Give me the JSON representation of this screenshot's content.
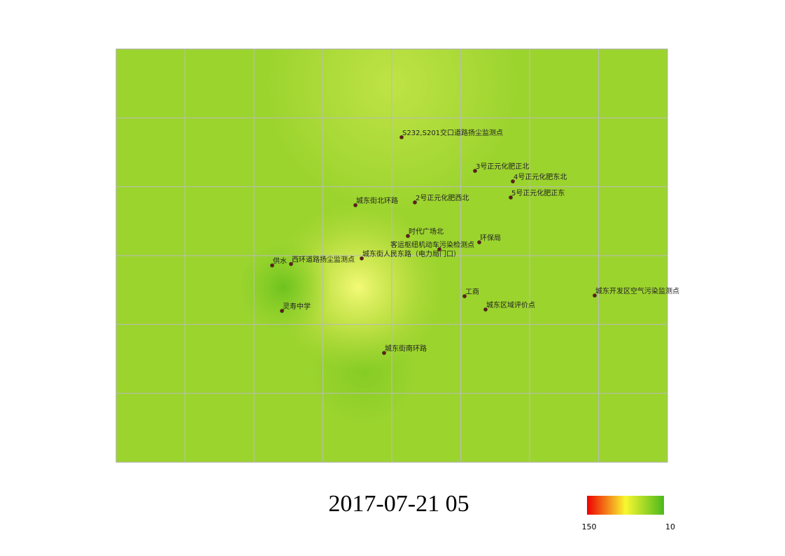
{
  "map": {
    "stations": [
      {
        "label": "S232,S201交口道路扬尘监测点"
      },
      {
        "label": "3号正元化肥正北"
      },
      {
        "label": "4号正元化肥东北"
      },
      {
        "label": "5号正元化肥正东"
      },
      {
        "label": "城东街北环路"
      },
      {
        "label": "2号正元化肥西北"
      },
      {
        "label": "时代广场北"
      },
      {
        "label": "环保局"
      },
      {
        "label": "客运枢纽机动车污染检测点"
      },
      {
        "label": "城东街人民东路（电力局门口）"
      },
      {
        "label": "供水"
      },
      {
        "label": "西环道路扬尘监测点"
      },
      {
        "label": "工商"
      },
      {
        "label": "城东区域评价点"
      },
      {
        "label": "城东开发区空气污染监测点"
      },
      {
        "label": "灵寿中学"
      },
      {
        "label": "城东街南环路"
      }
    ],
    "timestamp": "2017-07-21 05",
    "legend": {
      "max": "150",
      "min": "10"
    }
  }
}
